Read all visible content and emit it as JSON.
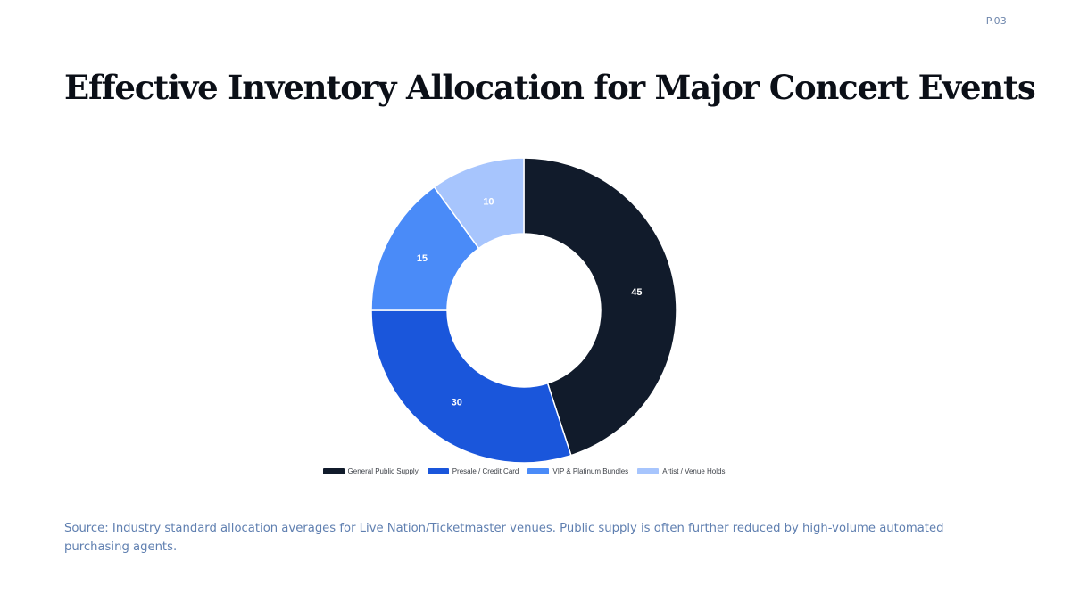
{
  "page": {
    "number": "P.03",
    "title": "Effective Inventory Allocation for Major Concert Events",
    "source": "Source: Industry standard allocation averages for Live Nation/Ticketmaster venues. Public supply is often further reduced by high-volume automated purchasing agents."
  },
  "chart_data": {
    "type": "pie",
    "variant": "donut",
    "title": "",
    "categories": [
      "General Public Supply",
      "Presale / Credit Card",
      "VIP & Platinum Bundles",
      "Artist / Venue Holds"
    ],
    "values": [
      45,
      30,
      15,
      10
    ],
    "colors": [
      "#111b2b",
      "#1a56db",
      "#4a8bf8",
      "#a7c5fd"
    ],
    "legend_position": "bottom",
    "data_labels": true
  }
}
